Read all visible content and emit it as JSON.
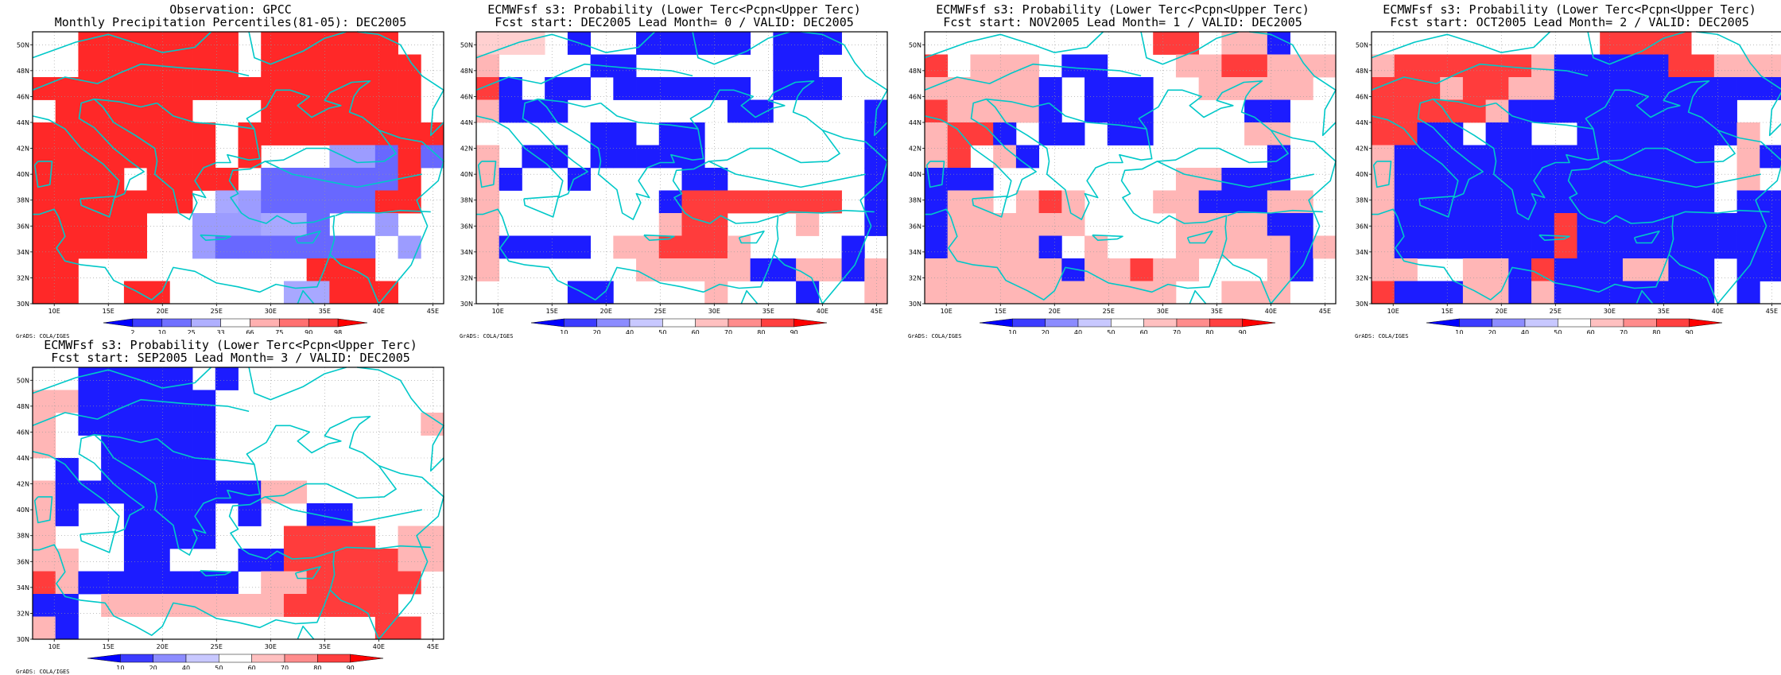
{
  "credit": "GrADS: COLA/IGES",
  "lon_labels": [
    "10E",
    "15E",
    "20E",
    "25E",
    "30E",
    "35E",
    "40E",
    "45E"
  ],
  "lat_labels": [
    "30N",
    "32N",
    "34N",
    "36N",
    "38N",
    "40N",
    "42N",
    "44N",
    "46N",
    "48N",
    "50N"
  ],
  "extent": {
    "lon": [
      8,
      46
    ],
    "lat": [
      30,
      51
    ]
  },
  "prob_colorbar": {
    "labels": [
      "10",
      "20",
      "40",
      "50",
      "60",
      "70",
      "80",
      "90"
    ],
    "colors": [
      "#0000ff",
      "#3c3cff",
      "#8c8cff",
      "#c8c8ff",
      "#ffffff",
      "#ffc0c0",
      "#ff8c8c",
      "#ff4040",
      "#ff0000"
    ]
  },
  "obs_colorbar": {
    "labels": [
      "2",
      "10",
      "25",
      "33",
      "66",
      "75",
      "90",
      "98"
    ],
    "colors": [
      "#0000ff",
      "#3c3cff",
      "#7070ff",
      "#b0b0ff",
      "#ffffff",
      "#ffb0b0",
      "#ff7070",
      "#ff3c3c",
      "#ff0000"
    ]
  },
  "panels": [
    {
      "id": "obs",
      "title_line1": "Observation: GPCC",
      "title_line2": "Monthly Precipitation Percentiles(81-05): DEC2005",
      "colorbar": "obs",
      "grid": [
        "..HHHHHHH.HHHHHH..",
        "..HHHHHHH.HHHHHHH.",
        "HHHHHHHHHHHHHHHHH.",
        ".HHHHHH...HHHHHHH.",
        "HHHHHHHH.HHHHHHHHH",
        "HHHHHHHH.H...ffMHM",
        "HHHH.HHHH.MMMMMMH.",
        "HHHHHHH.mfMMMMMHH.",
        "HHHHH..fffmmM..f..",
        "HHHHH..fMMMMMMM.f.",
        "HH..........HHH...",
        "HH..HH.....mmHHH.."
      ]
    },
    {
      "id": "lead0",
      "title_line1": "ECMWFsf s3: Probability (Lower Terc<Pcpn<Upper Terc)",
      "title_line2": "Fcst start: DEC2005   Lead Month= 0 / VALID: DEC2005",
      "colorbar": "prob",
      "grid": [
        "mmm.B..BBBBB.BBB..",
        "L....BB......BB...",
        "HB.BB.BBBBBB.BBB..",
        "LBBB.......BB....B",
        ".....BB.BB.......B",
        "L.BB.BBBBB.......B",
        "LB..B....BB......B",
        "L.......BHHHHHHH.B",
        "L.......LHH...L..B",
        "LBBBB.LLHHHL....B.",
        "L......LLLLLBBLLBL",
        "....BB....L...B..L"
      ]
    },
    {
      "id": "lead1",
      "title_line1": "ECMWFsf s3: Probability (Lower Terc<Pcpn<Upper Terc)",
      "title_line2": "Fcst start: NOV2005   Lead Month= 1 / VALID: DEC2005",
      "colorbar": "prob",
      "grid": [
        "..........HH.LLB..",
        "H.LLL.BB...LLHHLLL",
        "LLLLLB.BBB..LLLLL.",
        "HLLLLB.BBB....BB..",
        "LHHB.BB.BB....LL..",
        "LH.LB..........B..",
        "BBB........LLBBB..",
        "BLL.LHL...LLBBBLL.",
        "BLLLLLL....LLLLBB.",
        "BLLLLB.L...LLLLLBL",
        "LLLLLLBLLHLL...LB.",
        "LLLLLLLLLLL..LLL.."
      ]
    },
    {
      "id": "lead2",
      "title_line1": "ECMWFsf s3: Probability (Lower Terc<Pcpn<Upper Terc)",
      "title_line2": "Fcst start: OCT2005   Lead Month= 2 / VALID: DEC2005",
      "colorbar": "prob",
      "grid": [
        "..........HHHH....",
        "LHHHHHHLBBBBBHHLLL",
        "HHHLHHLLBBBBBBBBBB",
        "HHHHHLBBBBBBBBBB..",
        "HHBB.BB..BBBBBBBL.",
        "LBBBBBBBBBBBBBB.LB",
        "LBBBBBBBBBBBBBB.L.",
        "LBBBBBBBBBBBBBB.BB",
        "LBBBBBBBHBBBBBBBBB",
        "LBBBBBBBHBBBBBBBBB",
        "LL..LLBHBBBLLBB.BB",
        "HBBBLLBLBBBBBBB.B."
      ]
    },
    {
      "id": "lead3",
      "title_line1": "ECMWFsf s3: Probability (Lower Terc<Pcpn<Upper Terc)",
      "title_line2": "Fcst start: SEP2005   Lead Month= 3 / VALID: DEC2005",
      "colorbar": "prob",
      "grid": [
        "..BBBBB.B.........",
        "LLBBBBBB..........",
        "L.BBBBBB.........L",
        "L..BBBBB..........",
        ".B.BBBBB..........",
        "LBBBBBBBBBLL......",
        "LB..BBBB.B..BB....",
        "L...BBBB...HHHH.LL",
        "LL..BB...BBHHHHHLL",
        "HLBBBBBBB.LLHHHHH.",
        "BB.LLLLLLLLHHHHH..",
        "LB.............HH."
      ]
    }
  ],
  "color_codes": {
    "prob": {
      "B": "#1c1cff",
      "b": "#7878ff",
      "L": "#ffb6b6",
      "H": "#ff3c3c",
      "m": "#ffd0d0",
      "f": "#8080ff",
      "M": "#5050ff"
    },
    "obs": {
      "B": "#1c1cff",
      "b": "#7878ff",
      "L": "#ffb6b6",
      "H": "#ff2828",
      "m": "#a8a8ff",
      "f": "#9c9cff",
      "M": "#6868ff"
    }
  }
}
